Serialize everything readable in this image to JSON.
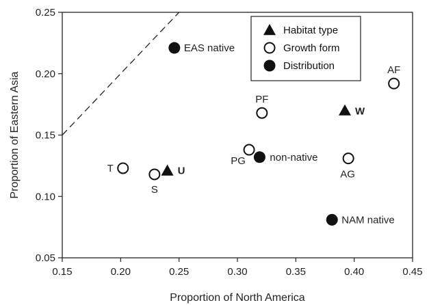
{
  "chart_data": {
    "type": "scatter",
    "xlabel": "Proportion of North America",
    "ylabel": "Proportion of Eastern Asia",
    "xlim": [
      0.15,
      0.45
    ],
    "ylim": [
      0.05,
      0.25
    ],
    "x_ticks": [
      "0.15",
      "0.20",
      "0.25",
      "0.30",
      "0.35",
      "0.40",
      "0.45"
    ],
    "y_ticks": [
      "0.05",
      "0.10",
      "0.15",
      "0.20",
      "0.25"
    ],
    "grid": false,
    "legend_placement": "top-right",
    "reference_line": {
      "style": "dashed",
      "description": "1:1 line",
      "points": [
        [
          0.15,
          0.15
        ],
        [
          0.25,
          0.25
        ]
      ]
    },
    "series": [
      {
        "name": "Habitat type",
        "marker": "filled-triangle",
        "points": [
          {
            "label": "U",
            "x": 0.24,
            "y": 0.121,
            "label_bold": true
          },
          {
            "label": "W",
            "x": 0.392,
            "y": 0.17,
            "label_bold": true
          }
        ]
      },
      {
        "name": "Growth form",
        "marker": "open-circle",
        "points": [
          {
            "label": "T",
            "x": 0.202,
            "y": 0.123
          },
          {
            "label": "S",
            "x": 0.229,
            "y": 0.118
          },
          {
            "label": "PG",
            "x": 0.31,
            "y": 0.138
          },
          {
            "label": "PF",
            "x": 0.321,
            "y": 0.168
          },
          {
            "label": "AG",
            "x": 0.395,
            "y": 0.131
          },
          {
            "label": "AF",
            "x": 0.434,
            "y": 0.192
          }
        ]
      },
      {
        "name": "Distribution",
        "marker": "filled-circle",
        "points": [
          {
            "label": "EAS native",
            "x": 0.246,
            "y": 0.221,
            "label_color": "#888888"
          },
          {
            "label": "non-native",
            "x": 0.319,
            "y": 0.132
          },
          {
            "label": "NAM native",
            "x": 0.381,
            "y": 0.081
          }
        ]
      }
    ]
  },
  "colors": {
    "marker": "#111111",
    "muted_label": "#888888",
    "axis": "#222222"
  }
}
